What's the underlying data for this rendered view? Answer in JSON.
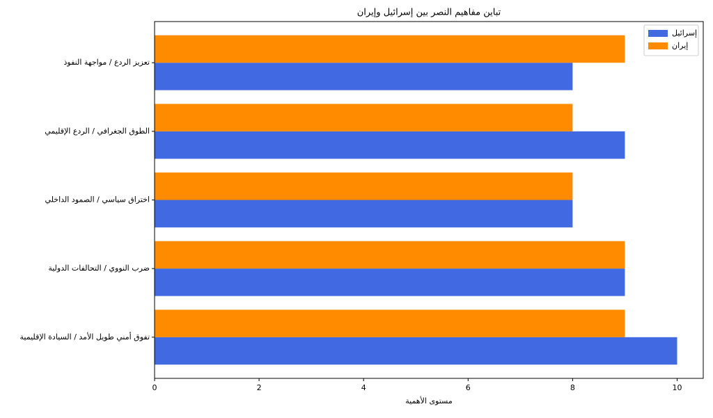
{
  "chart_data": {
    "type": "barh",
    "title": "تباين مفاهيم النصر بين إسرائيل وإيران",
    "x_label": "مستوى الأهمية",
    "categories": [
      "تفوق أمني طويل الأمد / السيادة الإقليمية",
      "ضرب النووي / التحالفات الدولية",
      "اختراق سياسي / الصمود الداخلي",
      "الطوق الجغرافي / الردع الإقليمي",
      "تعزيز الردع / مواجهة النفوذ"
    ],
    "series": [
      {
        "name": "إسرائيل",
        "color": "#4169e1",
        "values": [
          10,
          9,
          8,
          9,
          8
        ]
      },
      {
        "name": "إيران",
        "color": "#ff8c00",
        "values": [
          9,
          9,
          8,
          8,
          9
        ]
      }
    ],
    "xlim": [
      0,
      10.5
    ],
    "xticks": [
      0,
      2,
      4,
      6,
      8,
      10
    ],
    "legend": "upper right",
    "grid": false
  }
}
